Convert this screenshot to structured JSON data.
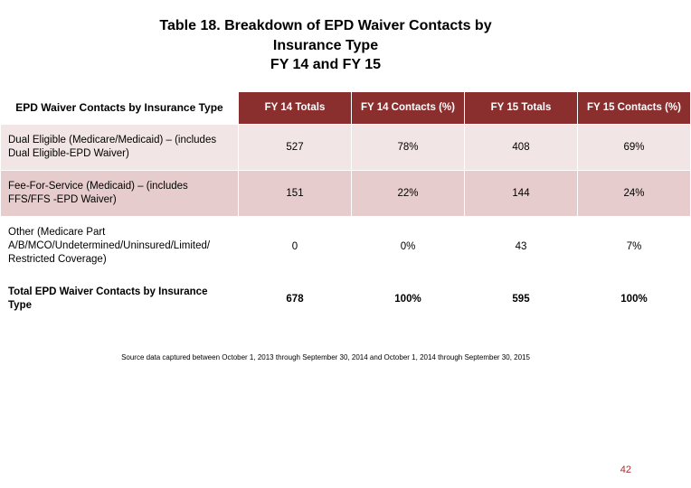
{
  "title": {
    "line1": "Table 18. Breakdown of EPD Waiver Contacts by",
    "line2": "Insurance Type",
    "line3": "FY 14 and FY 15"
  },
  "table": {
    "header_corner": "EPD Waiver Contacts by Insurance Type",
    "columns": [
      "FY 14 Totals",
      "FY 14 Contacts (%)",
      "FY 15 Totals",
      "FY 15 Contacts (%)"
    ],
    "rows": [
      {
        "label": "Dual Eligible (Medicare/Medicaid) – (includes Dual Eligible-EPD Waiver)",
        "cells": [
          "527",
          "78%",
          "408",
          "69%"
        ],
        "band": "band1"
      },
      {
        "label": "Fee-For-Service (Medicaid) – (includes FFS/FFS -EPD Waiver)",
        "cells": [
          "151",
          "22%",
          "144",
          "24%"
        ],
        "band": "band2"
      },
      {
        "label": "Other  (Medicare Part A/B/MCO/Undetermined/Uninsured/Limited/ Restricted Coverage)",
        "cells": [
          "0",
          "0%",
          "43",
          "7%"
        ],
        "band": "band3"
      }
    ],
    "total_row": {
      "label": "Total EPD Waiver Contacts by Insurance Type",
      "cells": [
        "678",
        "100%",
        "595",
        "100%"
      ]
    }
  },
  "source_note": "Source data captured between October 1, 2013 through September 30, 2014 and October 1, 2014 through September 30, 2015",
  "page_number": "42",
  "colors": {
    "header_bg": "#8b2e2e",
    "band1_bg": "#f2e5e5",
    "band2_bg": "#e6cccc",
    "page_num_color": "#a03030"
  }
}
